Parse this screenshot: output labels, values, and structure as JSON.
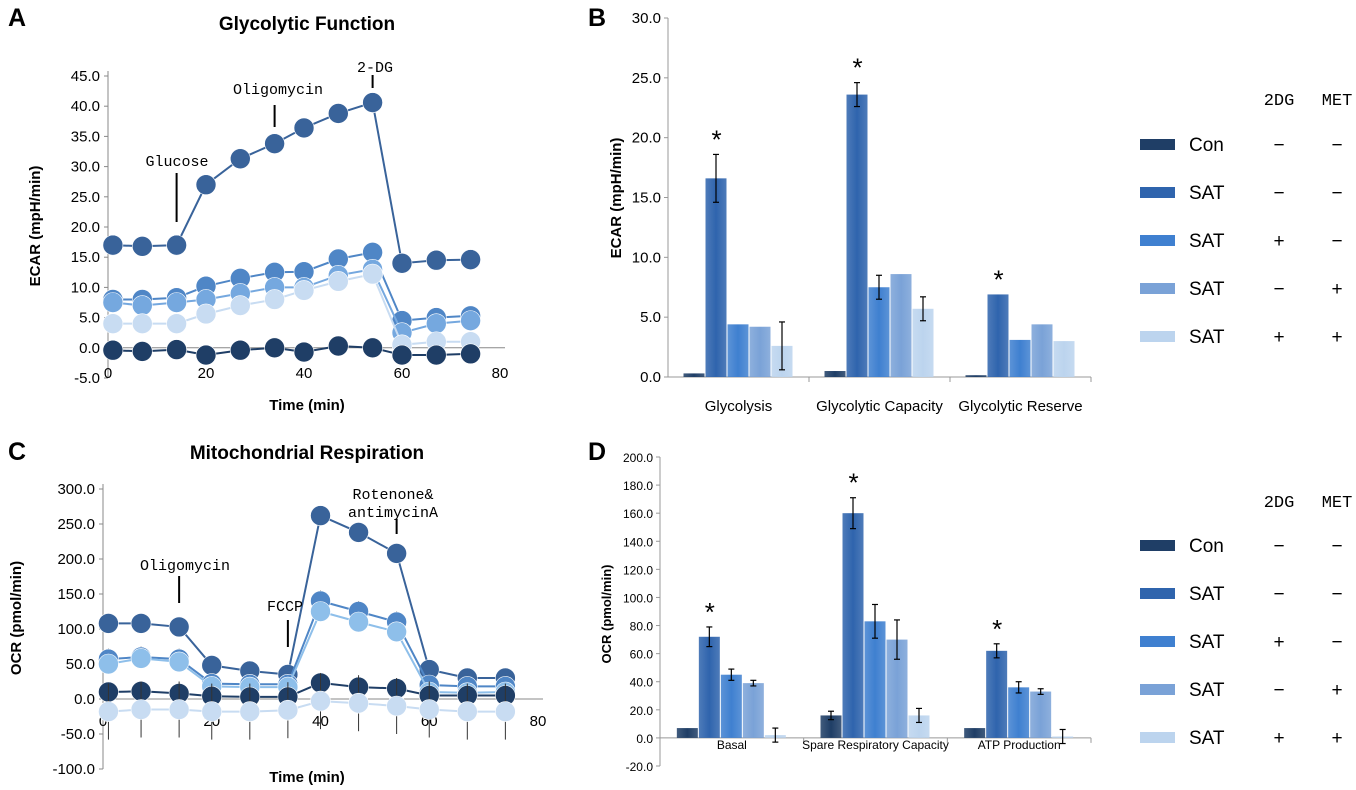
{
  "colors": {
    "con": "#1f3e66",
    "sat1": "#2f64ad",
    "sat2": "#3f80d0",
    "sat3": "#7aa2d7",
    "sat4": "#bcd4ee",
    "d1": "#39639a",
    "d2": "#4f86c6",
    "d3": "#75a8df",
    "d4": "#8ebfea",
    "d5": "#c8dcf2"
  },
  "panel_letters": [
    "A",
    "B",
    "C",
    "D"
  ],
  "legend": {
    "header_2dg": "2DG",
    "header_met": "MET",
    "rows": [
      {
        "label": "Con",
        "dg": "−",
        "met": "−"
      },
      {
        "label": "SAT",
        "dg": "−",
        "met": "−"
      },
      {
        "label": "SAT",
        "dg": "+",
        "met": "−"
      },
      {
        "label": "SAT",
        "dg": "−",
        "met": "+"
      },
      {
        "label": "SAT",
        "dg": "+",
        "met": "+"
      }
    ]
  },
  "chart_data": [
    {
      "panel": "A",
      "type": "line",
      "title": "Glycolytic Function",
      "xlabel": "Time (min)",
      "ylabel": "ECAR (mpH/min)",
      "xlim": [
        0,
        80
      ],
      "ylim": [
        -5,
        45
      ],
      "xticks": [
        "0",
        "20",
        "40",
        "60",
        "80"
      ],
      "yticks": [
        "-5.0",
        "0.0",
        "5.0",
        "10.0",
        "15.0",
        "20.0",
        "25.0",
        "30.0",
        "35.0",
        "40.0",
        "45.0"
      ],
      "x": [
        1,
        7,
        14,
        20,
        27,
        34,
        40,
        47,
        54,
        60,
        67,
        74
      ],
      "annotations": [
        {
          "text": "Glucose",
          "x": 14
        },
        {
          "text": "Oligomycin",
          "x": 34
        },
        {
          "text": "2-DG",
          "x": 54
        }
      ],
      "series": [
        {
          "name": "SAT (2DG − / MET −)",
          "values": [
            17,
            16.8,
            17,
            27,
            31.3,
            33.8,
            36.4,
            38.8,
            40.6,
            14,
            14.5,
            14.6
          ]
        },
        {
          "name": "SAT (2DG + / MET −)",
          "values": [
            8,
            8,
            8.3,
            10.2,
            11.5,
            12.5,
            12.6,
            14.7,
            15.8,
            4.5,
            5,
            5.3
          ]
        },
        {
          "name": "SAT (2DG − / MET +)",
          "values": [
            7.5,
            7,
            7.5,
            8,
            9,
            10,
            10,
            12,
            13,
            2.5,
            4,
            4.5
          ]
        },
        {
          "name": "SAT (2DG + / MET +)",
          "values": [
            4,
            4,
            4,
            5.6,
            7,
            8,
            9.5,
            11,
            12.2,
            0.5,
            1,
            1
          ]
        },
        {
          "name": "Con",
          "values": [
            -0.4,
            -0.6,
            -0.3,
            -1.2,
            -0.4,
            0,
            -0.7,
            0.3,
            0,
            -1.2,
            -1.2,
            -1
          ]
        }
      ]
    },
    {
      "panel": "B",
      "type": "bar",
      "ylabel": "ECAR (mpH/min)",
      "ylim": [
        0,
        30
      ],
      "yticks": [
        "0.0",
        "5.0",
        "10.0",
        "15.0",
        "20.0",
        "25.0",
        "30.0"
      ],
      "categories": [
        "Glycolysis",
        "Glycolytic Capacity",
        "Glycolytic Reserve"
      ],
      "significance_mark": "*",
      "significant_series_index": 1,
      "series": [
        {
          "name": "Con (2DG − / MET −)",
          "values": [
            0.3,
            0.5,
            0.15
          ],
          "errors": [
            0,
            0,
            0
          ]
        },
        {
          "name": "SAT (2DG − / MET −)",
          "values": [
            16.6,
            23.6,
            6.9
          ],
          "errors": [
            2,
            1,
            0
          ]
        },
        {
          "name": "SAT (2DG + / MET −)",
          "values": [
            4.4,
            7.5,
            3.1
          ],
          "errors": [
            0,
            1,
            0
          ]
        },
        {
          "name": "SAT (2DG − / MET +)",
          "values": [
            4.2,
            8.6,
            4.4
          ],
          "errors": [
            0,
            0,
            0
          ]
        },
        {
          "name": "SAT (2DG + / MET +)",
          "values": [
            2.6,
            5.7,
            3.0
          ],
          "errors": [
            2,
            1,
            0
          ]
        }
      ]
    },
    {
      "panel": "C",
      "type": "line",
      "title": "Mitochondrial Respiration",
      "xlabel": "Time (min)",
      "ylabel": "OCR (pmol/min)",
      "xlim": [
        0,
        80
      ],
      "ylim": [
        -100,
        300
      ],
      "xticks": [
        "0",
        "20",
        "40",
        "60",
        "80"
      ],
      "yticks": [
        "-100.0",
        "-50.0",
        "0.0",
        "50.0",
        "100.0",
        "150.0",
        "200.0",
        "250.0",
        "300.0"
      ],
      "x": [
        1,
        7,
        14,
        20,
        27,
        34,
        40,
        47,
        54,
        60,
        67,
        74
      ],
      "annotations": [
        {
          "text": "Oligomycin",
          "x": 14
        },
        {
          "text": "FCCP",
          "x": 34
        },
        {
          "text": "Rotenone&",
          "x": 54
        },
        {
          "text": "antimycinA",
          "x": 54
        }
      ],
      "series": [
        {
          "name": "SAT (2DG − / MET −)",
          "values": [
            108,
            108,
            103,
            48,
            40,
            35,
            262,
            238,
            208,
            42,
            30,
            30
          ]
        },
        {
          "name": "SAT (2DG + / MET −)",
          "values": [
            57,
            60,
            57,
            22,
            21,
            21,
            140,
            125,
            110,
            20,
            18,
            18
          ]
        },
        {
          "name": "SAT (2DG − / MET +)",
          "values": [
            50,
            58,
            53,
            18,
            17,
            17,
            125,
            110,
            96,
            10,
            9,
            10
          ]
        },
        {
          "name": "Con",
          "values": [
            10,
            11,
            8,
            4,
            3,
            3,
            23,
            17,
            15,
            5,
            5,
            5
          ]
        },
        {
          "name": "SAT (2DG + / MET +)",
          "values": [
            -18,
            -15,
            -15,
            -18,
            -18,
            -16,
            -3,
            -6,
            -10,
            -15,
            -18,
            -18
          ]
        }
      ]
    },
    {
      "panel": "D",
      "type": "bar",
      "ylabel": "OCR (pmol/min)",
      "ylim": [
        -20,
        200
      ],
      "yticks": [
        "-20.0",
        "0.0",
        "20.0",
        "40.0",
        "60.0",
        "80.0",
        "100.0",
        "120.0",
        "140.0",
        "160.0",
        "180.0",
        "200.0"
      ],
      "categories": [
        "Basal",
        "Spare Respiratory Capacity",
        "ATP Production"
      ],
      "significance_mark": "*",
      "significant_series_index": 1,
      "series": [
        {
          "name": "Con (2DG − / MET −)",
          "values": [
            7,
            16,
            7
          ],
          "errors": [
            0,
            3,
            0
          ]
        },
        {
          "name": "SAT (2DG − / MET −)",
          "values": [
            72,
            160,
            62
          ],
          "errors": [
            7,
            11,
            5
          ]
        },
        {
          "name": "SAT (2DG + / MET −)",
          "values": [
            45,
            83,
            36
          ],
          "errors": [
            4,
            12,
            4
          ]
        },
        {
          "name": "SAT (2DG − / MET +)",
          "values": [
            39,
            70,
            33
          ],
          "errors": [
            2,
            14,
            2
          ]
        },
        {
          "name": "SAT (2DG + / MET +)",
          "values": [
            2,
            16,
            1
          ],
          "errors": [
            5,
            5,
            5
          ]
        }
      ]
    }
  ]
}
